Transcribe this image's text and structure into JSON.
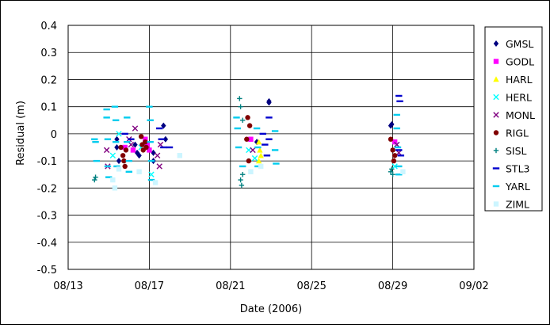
{
  "chart_data": {
    "type": "scatter",
    "xlabel": "Date (2006)",
    "ylabel": "Residual (m)",
    "x_ticks": [
      "08/13",
      "08/17",
      "08/21",
      "08/25",
      "08/29",
      "09/02"
    ],
    "x_tick_values": [
      13,
      17,
      21,
      25,
      29,
      33
    ],
    "xlim": [
      13,
      33
    ],
    "y_ticks": [
      "0.4",
      "0.3",
      "0.2",
      "0.1",
      "0",
      "-0.1",
      "-0.2",
      "-0.3",
      "-0.4",
      "-0.5"
    ],
    "ylim": [
      -0.5,
      0.4
    ],
    "grid": true,
    "legend_position": "right",
    "series": [
      {
        "name": "GMSL",
        "marker": "diamond",
        "color": "#000080",
        "points": [
          [
            15.4,
            -0.02
          ],
          [
            15.4,
            -0.05
          ],
          [
            15.5,
            -0.1
          ],
          [
            16.3,
            -0.04
          ],
          [
            16.4,
            -0.07
          ],
          [
            16.5,
            -0.08
          ],
          [
            17.2,
            -0.07
          ],
          [
            17.2,
            -0.1
          ],
          [
            17.7,
            0.03
          ],
          [
            17.8,
            -0.02
          ],
          [
            22.9,
            0.12
          ],
          [
            22.9,
            0.115
          ],
          [
            22.3,
            -0.03
          ],
          [
            28.9,
            0.03
          ],
          [
            28.95,
            0.035
          ]
        ]
      },
      {
        "name": "GODL",
        "marker": "square",
        "color": "#ff00ff",
        "points": [
          [
            16.8,
            -0.02
          ],
          [
            16.9,
            -0.04
          ],
          [
            17.0,
            -0.06
          ],
          [
            16.2,
            -0.06
          ],
          [
            15.8,
            -0.05
          ],
          [
            22.0,
            -0.02
          ],
          [
            29.1,
            -0.03
          ]
        ]
      },
      {
        "name": "HARL",
        "marker": "triangle",
        "color": "#ffff00",
        "points": [
          [
            22.4,
            -0.03
          ],
          [
            22.45,
            -0.06
          ],
          [
            22.5,
            -0.08
          ],
          [
            22.4,
            -0.1
          ]
        ]
      },
      {
        "name": "HERL",
        "marker": "x",
        "color": "#00ffff",
        "points": [
          [
            15.2,
            -0.08
          ],
          [
            15.5,
            0.0
          ],
          [
            16.6,
            -0.05
          ],
          [
            17.1,
            -0.15
          ],
          [
            21.9,
            -0.06
          ],
          [
            22.2,
            -0.09
          ],
          [
            29.1,
            -0.12
          ],
          [
            29.2,
            -0.04
          ]
        ]
      },
      {
        "name": "MONL",
        "marker": "x",
        "color": "#800080",
        "points": [
          [
            14.9,
            -0.06
          ],
          [
            14.95,
            -0.12
          ],
          [
            16.0,
            -0.02
          ],
          [
            16.1,
            -0.04
          ],
          [
            16.3,
            0.02
          ],
          [
            17.4,
            -0.08
          ],
          [
            17.5,
            -0.12
          ],
          [
            17.55,
            -0.04
          ],
          [
            22.1,
            -0.06
          ],
          [
            29.2,
            -0.04
          ],
          [
            29.3,
            -0.07
          ]
        ]
      },
      {
        "name": "RIGL",
        "marker": "circle",
        "color": "#800000",
        "points": [
          [
            15.6,
            -0.05
          ],
          [
            15.7,
            -0.08
          ],
          [
            15.75,
            -0.1
          ],
          [
            15.8,
            -0.12
          ],
          [
            15.85,
            -0.06
          ],
          [
            16.6,
            -0.01
          ],
          [
            16.65,
            -0.04
          ],
          [
            16.7,
            -0.06
          ],
          [
            16.8,
            -0.03
          ],
          [
            16.85,
            -0.05
          ],
          [
            21.8,
            -0.02
          ],
          [
            21.85,
            0.06
          ],
          [
            21.9,
            -0.1
          ],
          [
            21.95,
            0.03
          ],
          [
            28.9,
            -0.02
          ],
          [
            29.0,
            -0.06
          ],
          [
            29.05,
            -0.1
          ],
          [
            29.1,
            -0.08
          ]
        ]
      },
      {
        "name": "SISL",
        "marker": "plus",
        "color": "#008080",
        "points": [
          [
            14.3,
            -0.17
          ],
          [
            14.35,
            -0.16
          ],
          [
            21.45,
            0.13
          ],
          [
            21.5,
            0.1
          ],
          [
            21.5,
            -0.17
          ],
          [
            21.55,
            -0.19
          ],
          [
            21.6,
            -0.15
          ],
          [
            21.6,
            0.05
          ],
          [
            28.9,
            -0.14
          ],
          [
            28.95,
            -0.13
          ],
          [
            29.0,
            -0.15
          ]
        ]
      },
      {
        "name": "STL3",
        "marker": "dash",
        "color": "#0000cd",
        "points": [
          [
            15.8,
            0.0
          ],
          [
            16.1,
            -0.02
          ],
          [
            17.5,
            0.02
          ],
          [
            17.6,
            -0.02
          ],
          [
            17.7,
            -0.05
          ],
          [
            18.0,
            -0.05
          ],
          [
            22.6,
            0.0
          ],
          [
            22.7,
            -0.04
          ],
          [
            22.8,
            -0.08
          ],
          [
            22.9,
            -0.02
          ],
          [
            22.9,
            0.06
          ],
          [
            29.3,
            0.14
          ],
          [
            29.35,
            0.12
          ],
          [
            29.4,
            -0.08
          ],
          [
            29.3,
            -0.06
          ]
        ]
      },
      {
        "name": "YARL",
        "marker": "dash",
        "color": "#00ccee",
        "points": [
          [
            14.3,
            -0.02
          ],
          [
            14.35,
            -0.03
          ],
          [
            14.4,
            -0.1
          ],
          [
            14.9,
            0.09
          ],
          [
            14.9,
            0.06
          ],
          [
            14.95,
            -0.02
          ],
          [
            14.95,
            -0.12
          ],
          [
            15.0,
            -0.16
          ],
          [
            15.3,
            0.1
          ],
          [
            15.35,
            0.05
          ],
          [
            15.35,
            -0.03
          ],
          [
            15.4,
            -0.12
          ],
          [
            15.9,
            0.06
          ],
          [
            15.9,
            -0.03
          ],
          [
            16.0,
            -0.1
          ],
          [
            16.0,
            -0.14
          ],
          [
            17.0,
            0.1
          ],
          [
            17.05,
            0.05
          ],
          [
            17.05,
            -0.03
          ],
          [
            17.1,
            -0.1
          ],
          [
            17.1,
            -0.17
          ],
          [
            21.3,
            0.06
          ],
          [
            21.35,
            0.02
          ],
          [
            21.4,
            -0.05
          ],
          [
            21.6,
            -0.12
          ],
          [
            22.3,
            0.02
          ],
          [
            22.35,
            -0.05
          ],
          [
            22.35,
            -0.12
          ],
          [
            23.2,
            0.01
          ],
          [
            23.2,
            -0.06
          ],
          [
            23.25,
            -0.11
          ],
          [
            29.2,
            0.07
          ],
          [
            29.2,
            0.02
          ],
          [
            29.25,
            -0.05
          ],
          [
            29.3,
            -0.12
          ],
          [
            29.3,
            -0.15
          ]
        ]
      },
      {
        "name": "ZIML",
        "marker": "square",
        "color": "#ccf5ff",
        "points": [
          [
            15.2,
            -0.17
          ],
          [
            15.3,
            -0.2
          ],
          [
            15.5,
            -0.13
          ],
          [
            16.5,
            -0.14
          ],
          [
            17.3,
            -0.18
          ],
          [
            18.5,
            -0.08
          ],
          [
            22.0,
            -0.14
          ],
          [
            22.5,
            -0.12
          ],
          [
            29.5,
            -0.14
          ]
        ]
      }
    ]
  }
}
